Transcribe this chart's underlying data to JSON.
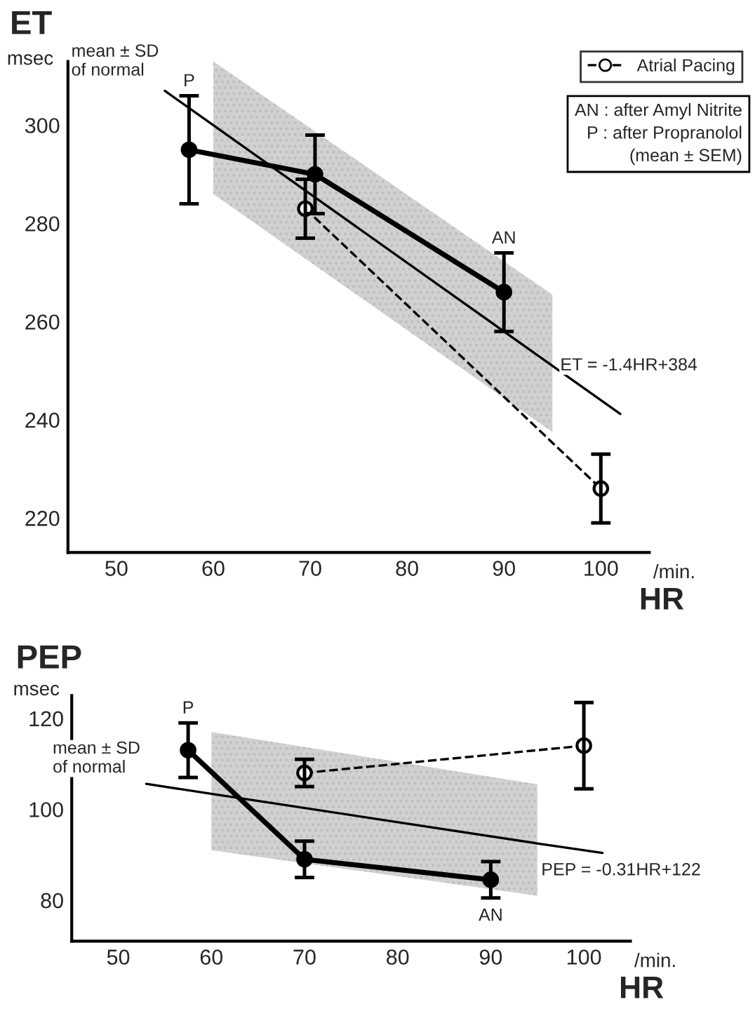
{
  "chart_data": [
    {
      "type": "line",
      "title": "ET",
      "ylabel": "msec",
      "xlabel": "HR",
      "xlim": [
        45,
        105
      ],
      "xticks": [
        50,
        60,
        70,
        80,
        90,
        100
      ],
      "ylim": [
        213,
        313
      ],
      "yticks": [
        220,
        240,
        260,
        280,
        300
      ],
      "grid": false,
      "legend": "top right",
      "series": [
        {
          "color": "#000000",
          "x": [
            55,
            60,
            95,
            102
          ],
          "values": [
            307,
            300,
            251,
            241.2
          ],
          "lower": [
            null,
            286,
            237.5,
            null
          ],
          "upper": [
            null,
            313,
            265.5,
            null
          ],
          "marker": "none",
          "line_style": "solid"
        },
        {
          "color": "#000000",
          "x": [
            57.5,
            70.5,
            90
          ],
          "values": [
            295,
            290,
            266
          ],
          "errors": [
            11,
            8,
            8
          ],
          "marker": "circle",
          "line_style": "solid"
        },
        {
          "name": "Atrial Pacing",
          "color": "#000000",
          "x": [
            69.5,
            100
          ],
          "values": [
            283,
            226
          ],
          "errors": [
            6,
            7
          ],
          "marker": "circle",
          "line_style": "dashed"
        }
      ],
      "annotations": [
        {
          "text": "P",
          "x": 57.5,
          "y": 306
        },
        {
          "text": "AN",
          "x": 90,
          "y": 274
        },
        {
          "text": "mean ± SD\nof normal",
          "x": 55,
          "y": 307
        },
        {
          "text": "ET = -1.4HR+384",
          "x": 95,
          "y": 251
        },
        "AN : after Amyl Nitrite",
        "P : after Propranolol",
        "(mean ± SEM)",
        "/min."
      ]
    },
    {
      "type": "line",
      "title": "PEP",
      "ylabel": "msec",
      "xlabel": "HR",
      "xlim": [
        45,
        105
      ],
      "xticks": [
        50,
        60,
        70,
        80,
        90,
        100
      ],
      "ylim": [
        71,
        125
      ],
      "yticks": [
        80,
        100,
        120
      ],
      "grid": false,
      "series": [
        {
          "color": "#000000",
          "x": [
            53,
            60,
            95,
            102
          ],
          "values": [
            105.6,
            103.4,
            92.5,
            90.4
          ],
          "lower": [
            null,
            91,
            81,
            null
          ],
          "upper": [
            null,
            117,
            105.5,
            null
          ],
          "marker": "none",
          "line_style": "solid"
        },
        {
          "color": "#000000",
          "x": [
            57.5,
            70,
            90
          ],
          "values": [
            113,
            89,
            84.5
          ],
          "errors": [
            6,
            4,
            4
          ],
          "marker": "circle",
          "line_style": "solid"
        },
        {
          "color": "#000000",
          "x": [
            70,
            100
          ],
          "values": [
            108,
            114
          ],
          "errors": [
            3,
            9.5
          ],
          "marker": "circle",
          "line_style": "dashed"
        }
      ],
      "annotations": [
        {
          "text": "P",
          "x": 57.5,
          "y": 119
        },
        {
          "text": "AN",
          "x": 90,
          "y": 80
        },
        {
          "text": "mean ± SD\nof normal",
          "x": 53,
          "y": 106
        },
        {
          "text": "PEP = -0.31HR+122",
          "x": 95,
          "y": 92.5
        },
        "/min."
      ]
    }
  ]
}
